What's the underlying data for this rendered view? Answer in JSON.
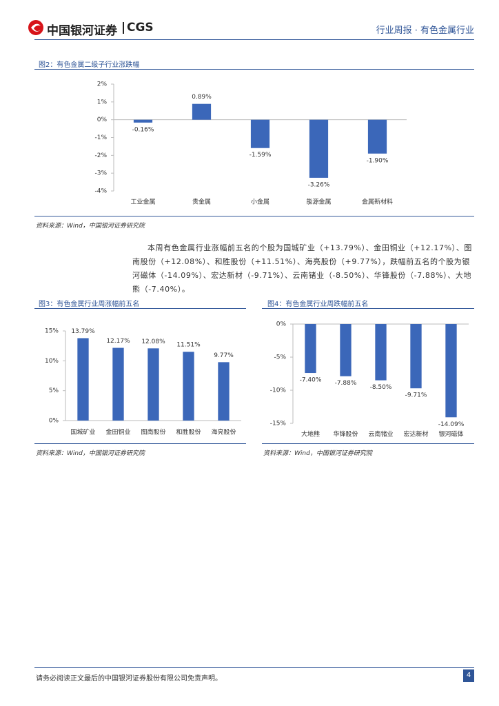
{
  "header": {
    "logo_cn": "中国银河证券",
    "logo_en": "CGS",
    "section": "行业周报 · 有色金属行业"
  },
  "chart_data": [
    {
      "type": "bar",
      "title": "图2：有色金属二级子行业涨跌幅",
      "source": "资料来源：Wind，中国银河证券研究院",
      "categories": [
        "工业金属",
        "贵金属",
        "小金属",
        "能源金属",
        "金属新材料"
      ],
      "values": [
        -0.16,
        0.89,
        -1.59,
        -3.26,
        -1.9
      ],
      "value_labels": [
        "-0.16%",
        "0.89%",
        "-1.59%",
        "-3.26%",
        "-1.90%"
      ],
      "color": "#3b67b9",
      "ylim": [
        -4,
        2
      ],
      "yticks": [
        {
          "value": 2,
          "label": "2%"
        },
        {
          "value": 1,
          "label": "1%"
        },
        {
          "value": 0,
          "label": "0%"
        },
        {
          "value": -1,
          "label": "-1%"
        },
        {
          "value": -2,
          "label": "-2%"
        },
        {
          "value": -3,
          "label": "-3%"
        },
        {
          "value": -4,
          "label": "-4%"
        }
      ]
    },
    {
      "type": "bar",
      "title": "图3：有色金属行业周涨幅前五名",
      "source": "资料来源：Wind，中国银河证券研究院",
      "categories": [
        "国城矿业",
        "金田铜业",
        "图南股份",
        "和胜股份",
        "海亮股份"
      ],
      "values": [
        13.79,
        12.17,
        12.08,
        11.51,
        9.77
      ],
      "value_labels": [
        "13.79%",
        "12.17%",
        "12.08%",
        "11.51%",
        "9.77%"
      ],
      "color": "#3b67b9",
      "ylim": [
        0,
        15
      ],
      "yticks": [
        {
          "value": 15,
          "label": "15%"
        },
        {
          "value": 10,
          "label": "10%"
        },
        {
          "value": 5,
          "label": "5%"
        },
        {
          "value": 0,
          "label": "0%"
        }
      ]
    },
    {
      "type": "bar",
      "title": "图4：有色金属行业周跌幅前五名",
      "source": "资料来源：Wind，中国银河证券研究院",
      "categories": [
        "大地熊",
        "华锋股份",
        "云南锗业",
        "宏达新材",
        "银河磁体"
      ],
      "values": [
        -7.4,
        -7.88,
        -8.5,
        -9.71,
        -14.09
      ],
      "value_labels": [
        "-7.40%",
        "-7.88%",
        "-8.50%",
        "-9.71%",
        "-14.09%"
      ],
      "color": "#3b67b9",
      "ylim": [
        -15,
        0
      ],
      "yticks": [
        {
          "value": 0,
          "label": "0%"
        },
        {
          "value": -5,
          "label": "-5%"
        },
        {
          "value": -10,
          "label": "-10%"
        },
        {
          "value": -15,
          "label": "-15%"
        }
      ]
    }
  ],
  "paragraph": "本周有色金属行业涨幅前五名的个股为国城矿业（+13.79%）、金田铜业（+12.17%）、图南股份（+12.08%）、和胜股份（+11.51%）、海亮股份（+9.77%），跌幅前五名的个股为银河磁体（-14.09%）、宏达新材（-9.71%）、云南锗业（-8.50%）、华锋股份（-7.88%）、大地熊（-7.40%）。",
  "footer": {
    "disclaimer": "请务必阅读正文最后的中国银河证券股份有限公司免责声明。",
    "page_number": "4"
  }
}
